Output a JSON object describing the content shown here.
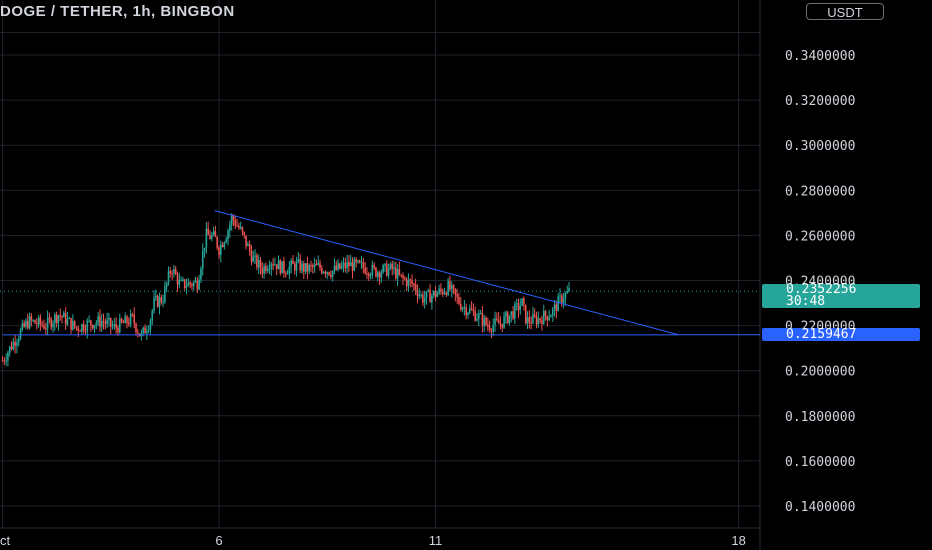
{
  "header": {
    "title": "DOGE / TETHER, 1h, BINGBON",
    "currency": "USDT"
  },
  "price_tag": {
    "price": "0.2352256",
    "countdown": "30:48"
  },
  "support_tag": {
    "price": "0.2159467"
  },
  "colors": {
    "up": "#26a69a",
    "down": "#ef5350",
    "trendline": "#2962ff",
    "grid": "#1e222d",
    "axis_text": "#d1d4dc"
  },
  "chart_data": {
    "type": "candlestick",
    "title": "DOGE / TETHER, 1h, BINGBON",
    "ylim": [
      0.13,
      0.35
    ],
    "y_ticks": [
      "0.1400000",
      "0.1600000",
      "0.1800000",
      "0.2000000",
      "0.2200000",
      "0.2400000",
      "0.2600000",
      "0.2800000",
      "0.3000000",
      "0.3200000",
      "0.3400000"
    ],
    "x_ticks": [
      "ct",
      "6",
      "11",
      "18"
    ],
    "x_tick_days": [
      1,
      6,
      11,
      18
    ],
    "x_range_days": [
      1,
      22
    ],
    "last_price": 0.2352256,
    "support_level": 0.2159467,
    "grid": true,
    "trendlines": [
      {
        "name": "descending",
        "x_days": [
          5.9,
          16.6
        ],
        "y": [
          0.271,
          0.216
        ]
      },
      {
        "name": "horizontal",
        "x_days": [
          1,
          16.6
        ],
        "y": [
          0.2159,
          0.2159
        ]
      }
    ],
    "close_path": [
      [
        1.0,
        0.2045
      ],
      [
        1.3,
        0.214
      ],
      [
        1.6,
        0.222
      ],
      [
        2.0,
        0.22
      ],
      [
        2.3,
        0.225
      ],
      [
        2.7,
        0.219
      ],
      [
        3.0,
        0.221
      ],
      [
        3.3,
        0.222
      ],
      [
        3.6,
        0.219
      ],
      [
        4.0,
        0.223
      ],
      [
        4.2,
        0.215
      ],
      [
        4.4,
        0.222
      ],
      [
        4.5,
        0.23
      ],
      [
        4.7,
        0.232
      ],
      [
        4.9,
        0.246
      ],
      [
        5.1,
        0.238
      ],
      [
        5.5,
        0.239
      ],
      [
        5.7,
        0.26
      ],
      [
        5.9,
        0.259
      ],
      [
        6.0,
        0.254
      ],
      [
        6.2,
        0.262
      ],
      [
        6.3,
        0.268
      ],
      [
        6.5,
        0.262
      ],
      [
        6.8,
        0.249
      ],
      [
        7.0,
        0.245
      ],
      [
        7.2,
        0.249
      ],
      [
        7.5,
        0.245
      ],
      [
        7.8,
        0.247
      ],
      [
        8.0,
        0.245
      ],
      [
        8.3,
        0.246
      ],
      [
        8.6,
        0.244
      ],
      [
        9.0,
        0.247
      ],
      [
        9.3,
        0.246
      ],
      [
        9.6,
        0.244
      ],
      [
        10.0,
        0.245
      ],
      [
        10.2,
        0.241
      ],
      [
        10.5,
        0.238
      ],
      [
        10.7,
        0.232
      ],
      [
        11.0,
        0.234
      ],
      [
        11.3,
        0.237
      ],
      [
        11.6,
        0.229
      ],
      [
        12.0,
        0.224
      ],
      [
        12.2,
        0.22
      ],
      [
        12.5,
        0.221
      ],
      [
        12.8,
        0.226
      ],
      [
        13.0,
        0.23
      ],
      [
        13.1,
        0.222
      ],
      [
        13.4,
        0.223
      ],
      [
        13.7,
        0.226
      ],
      [
        13.9,
        0.232
      ],
      [
        14.1,
        0.2352
      ]
    ]
  }
}
